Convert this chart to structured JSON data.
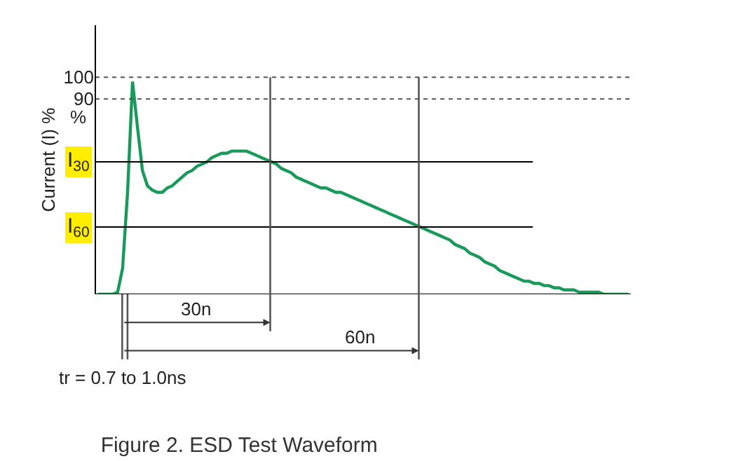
{
  "chart_data": {
    "type": "line",
    "title": "Figure 2. ESD Test Waveform",
    "ylabel": "Current (I) %",
    "categories": [
      null,
      null,
      null,
      null,
      null,
      null,
      null,
      null,
      null,
      null,
      null,
      null,
      null,
      null,
      null,
      null,
      null,
      null,
      null,
      null,
      null,
      null,
      null,
      null,
      null,
      null,
      null,
      null,
      null,
      null,
      null,
      null,
      null,
      null,
      null,
      null,
      null,
      null,
      null,
      null,
      null,
      null,
      null,
      null,
      null,
      null,
      null,
      null,
      null,
      null,
      null,
      null,
      null,
      null,
      null,
      null,
      null,
      null,
      null,
      null,
      null,
      null,
      null,
      null,
      null,
      null,
      null,
      null,
      null,
      null,
      null,
      null,
      null,
      null,
      null,
      null,
      null,
      null,
      null,
      null,
      null,
      null,
      null,
      null,
      null,
      null,
      null,
      null,
      null,
      null,
      null,
      null,
      null,
      null,
      null,
      null,
      null,
      null,
      null,
      null,
      null,
      null,
      null,
      null,
      null,
      null,
      null,
      null
    ],
    "series": [
      {
        "color": "#1a9a5a",
        "values": [
          0,
          0,
          0,
          0,
          1,
          12,
          47,
          98,
          77,
          57,
          50,
          48,
          47,
          47,
          49,
          50,
          52,
          54,
          56,
          57,
          59,
          60,
          61,
          63,
          64,
          65,
          65,
          66,
          66,
          66,
          66,
          65,
          64,
          63,
          62,
          61,
          60,
          58,
          57,
          56,
          54,
          53,
          52,
          51,
          50,
          49,
          49,
          48,
          47,
          47,
          46,
          45,
          44,
          43,
          42,
          41,
          40,
          39,
          38,
          37,
          36,
          35,
          34,
          33,
          32,
          31,
          30,
          29,
          28,
          27,
          26,
          25,
          23,
          22,
          21,
          19,
          18,
          17,
          15,
          14,
          13,
          11,
          10,
          9,
          8,
          7,
          6,
          6,
          5,
          5,
          4,
          4,
          3,
          3,
          2,
          2,
          2,
          1,
          1,
          1,
          1,
          1,
          0,
          0,
          0,
          0,
          0,
          0
        ]
      }
    ],
    "ylim": [
      0,
      124
    ],
    "yticks": [
      90,
      100
    ],
    "tick_labels": "y",
    "marker": "none",
    "line_style": "solid",
    "ref_lines": [
      {
        "axis": "y",
        "value": 0,
        "color": "#000000",
        "line_style": "solid"
      },
      {
        "axis": "y",
        "value": 100,
        "color": "#555555",
        "line_style": "dotted"
      },
      {
        "axis": "y",
        "value": 90,
        "color": "#555555",
        "line_style": "dotted"
      },
      {
        "axis": "y",
        "value": 61,
        "label": "I$_{30}$",
        "color": "#000000",
        "line_style": "solid"
      },
      {
        "axis": "y",
        "value": 31,
        "label": "I$_{60}$",
        "color": "#000000",
        "line_style": "solid"
      }
    ],
    "annotations": [
      "%",
      "30n",
      "60n",
      "tr = 0.7 to 1.0ns"
    ]
  }
}
